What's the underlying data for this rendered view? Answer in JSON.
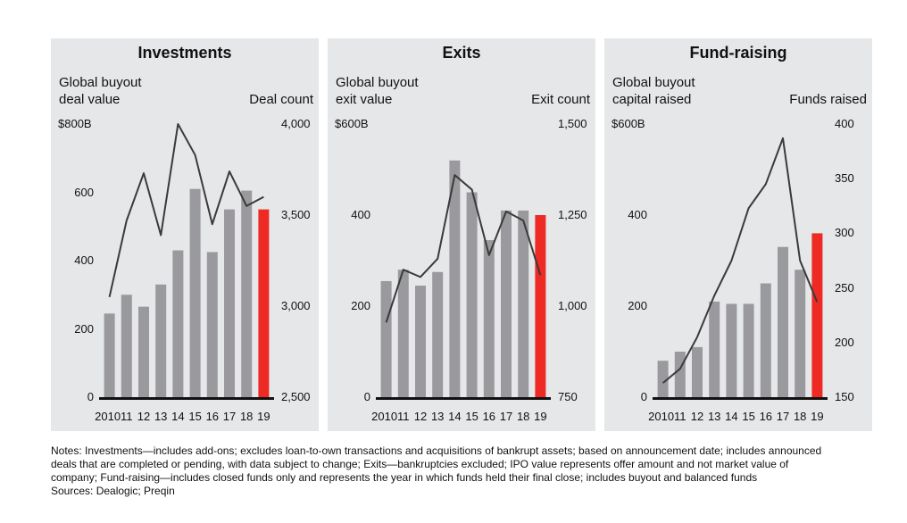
{
  "chart_data": [
    {
      "type": "bar",
      "title": "Investments",
      "ylabel_left": "Global buyout\ndeal value",
      "ylabel_right": "Deal count",
      "categories": [
        "2010",
        "11",
        "12",
        "13",
        "14",
        "15",
        "16",
        "17",
        "18",
        "19"
      ],
      "left_ticks": [
        "0",
        "200",
        "400",
        "600",
        "$800B"
      ],
      "right_ticks": [
        "2,500",
        "3,000",
        "3,500",
        "4,000"
      ],
      "ylim_left": [
        0,
        800
      ],
      "ylim_right": [
        2500,
        4000
      ],
      "series": [
        {
          "kind": "bar",
          "axis": "left",
          "values": [
            245,
            300,
            265,
            330,
            430,
            610,
            425,
            550,
            605,
            550
          ]
        },
        {
          "kind": "line",
          "axis": "right",
          "values": [
            3050,
            3470,
            3730,
            3390,
            4000,
            3830,
            3450,
            3740,
            3550,
            3600
          ]
        }
      ],
      "highlight_index": 9,
      "colors": {
        "bar": "#9a9a9e",
        "highlight": "#ee2a24",
        "line": "#3a3a3a"
      }
    },
    {
      "type": "bar",
      "title": "Exits",
      "ylabel_left": "Global buyout\nexit value",
      "ylabel_right": "Exit count",
      "categories": [
        "2010",
        "11",
        "12",
        "13",
        "14",
        "15",
        "16",
        "17",
        "18",
        "19"
      ],
      "left_ticks": [
        "0",
        "200",
        "400",
        "$600B"
      ],
      "right_ticks": [
        "750",
        "1,000",
        "1,250",
        "1,500"
      ],
      "ylim_left": [
        0,
        600
      ],
      "ylim_right": [
        750,
        1500
      ],
      "series": [
        {
          "kind": "bar",
          "axis": "left",
          "values": [
            255,
            280,
            245,
            275,
            520,
            450,
            345,
            410,
            410,
            400
          ]
        },
        {
          "kind": "line",
          "axis": "right",
          "values": [
            955,
            1100,
            1080,
            1130,
            1360,
            1320,
            1140,
            1260,
            1235,
            1085
          ]
        }
      ],
      "highlight_index": 9,
      "colors": {
        "bar": "#9a9a9e",
        "highlight": "#ee2a24",
        "line": "#3a3a3a"
      }
    },
    {
      "type": "bar",
      "title": "Fund-raising",
      "ylabel_left": "Global buyout\ncapital raised",
      "ylabel_right": "Funds raised",
      "categories": [
        "2010",
        "11",
        "12",
        "13",
        "14",
        "15",
        "16",
        "17",
        "18",
        "19"
      ],
      "left_ticks": [
        "0",
        "200",
        "400",
        "$600B"
      ],
      "right_ticks": [
        "150",
        "200",
        "250",
        "300",
        "350",
        "400"
      ],
      "ylim_left": [
        0,
        600
      ],
      "ylim_right": [
        150,
        400
      ],
      "series": [
        {
          "kind": "bar",
          "axis": "left",
          "values": [
            80,
            100,
            110,
            210,
            205,
            205,
            250,
            330,
            280,
            360
          ]
        },
        {
          "kind": "line",
          "axis": "right",
          "values": [
            163,
            176,
            205,
            243,
            275,
            323,
            345,
            387,
            275,
            237
          ]
        }
      ],
      "highlight_index": 9,
      "colors": {
        "bar": "#9a9a9e",
        "highlight": "#ee2a24",
        "line": "#3a3a3a"
      }
    }
  ],
  "notes": [
    "Notes: Investments—includes add-ons; excludes loan-to-own transactions and acquisitions of bankrupt assets; based on announcement date; includes announced",
    "deals that are completed or pending, with data subject to change; Exits—bankruptcies excluded; IPO value represents offer amount and not market value of",
    "company; Fund-raising—includes closed funds only and represents the year in which funds held their final close; includes buyout and balanced funds",
    "Sources: Dealogic; Preqin"
  ]
}
